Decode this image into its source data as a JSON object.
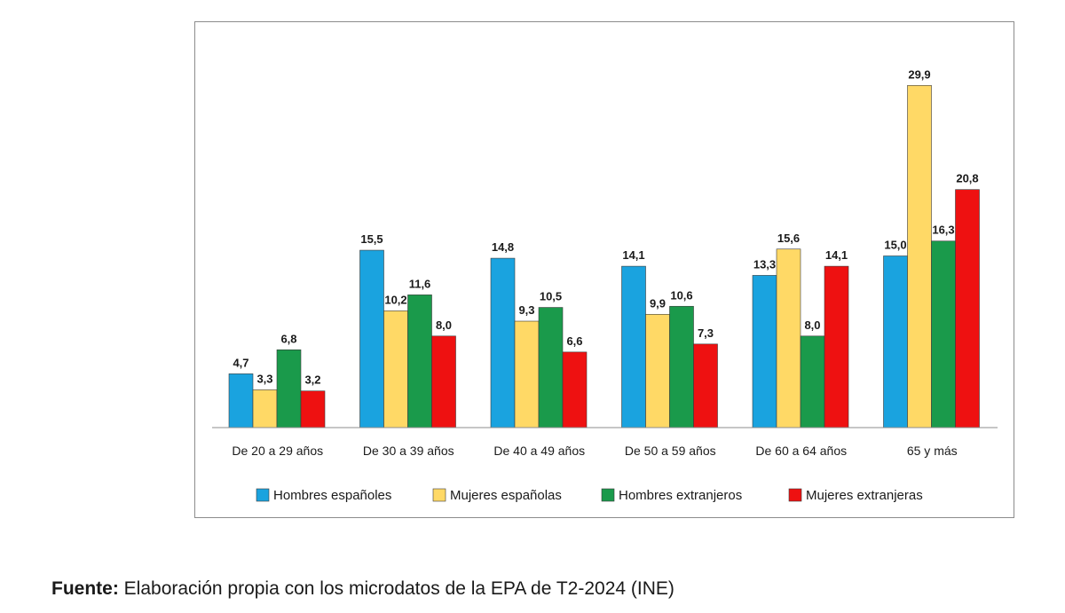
{
  "chart_data": {
    "type": "bar",
    "title": "",
    "xlabel": "",
    "ylabel": "",
    "ylim": [
      0,
      31
    ],
    "grid": false,
    "legend_position": "bottom",
    "categories": [
      "De 20 a 29 años",
      "De 30 a 39 años",
      "De 40 a 49 años",
      "De 50 a 59 años",
      "De 60 a 64 años",
      "65 y más"
    ],
    "series": [
      {
        "name": "Hombres españoles",
        "color": "#1aa3df",
        "values": [
          4.7,
          15.5,
          14.8,
          14.1,
          13.3,
          15.0
        ],
        "labels": [
          "4,7",
          "15,5",
          "14,8",
          "14,1",
          "13,3",
          "15,0"
        ]
      },
      {
        "name": "Mujeres españolas",
        "color": "#ffd966",
        "values": [
          3.3,
          10.2,
          9.3,
          9.9,
          15.6,
          29.9
        ],
        "labels": [
          "3,3",
          "10,2",
          "9,3",
          "9,9",
          "15,6",
          "29,9"
        ]
      },
      {
        "name": "Hombres extranjeros",
        "color": "#1a9a4b",
        "values": [
          6.8,
          11.6,
          10.5,
          10.6,
          8.0,
          16.3
        ],
        "labels": [
          "6,8",
          "11,6",
          "10,5",
          "10,6",
          "8,0",
          "16,3"
        ]
      },
      {
        "name": "Mujeres extranjeras",
        "color": "#ee1111",
        "values": [
          3.2,
          8.0,
          6.6,
          7.3,
          14.1,
          20.8
        ],
        "labels": [
          "3,2",
          "8,0",
          "6,6",
          "7,3",
          "14,1",
          "20,8"
        ]
      }
    ]
  },
  "source": {
    "label": "Fuente:",
    "text": " Elaboración propia con los microdatos de la EPA de T2-2024 (INE)"
  }
}
